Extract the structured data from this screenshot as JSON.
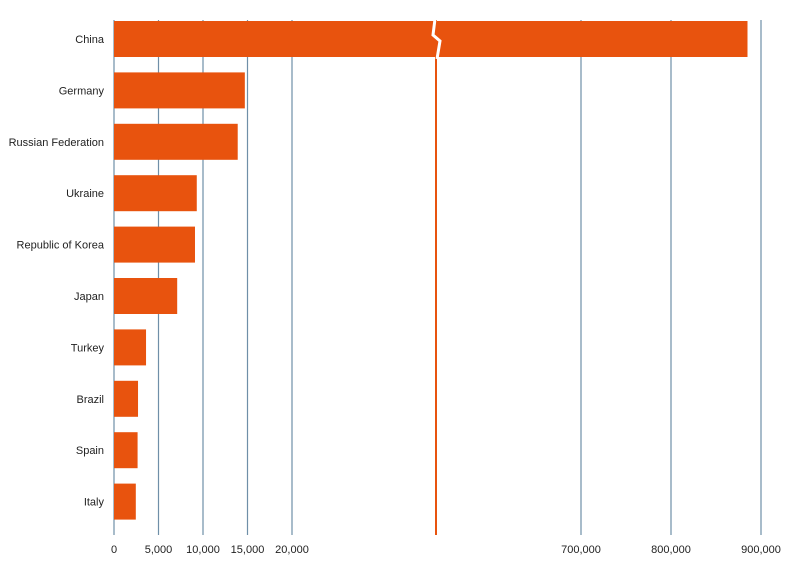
{
  "chart_data": {
    "type": "bar",
    "orientation": "horizontal",
    "categories": [
      "China",
      "Germany",
      "Russian Federation",
      "Ukraine",
      "Republic of Korea",
      "Japan",
      "Turkey",
      "Brazil",
      "Spain",
      "Italy"
    ],
    "values": [
      885000,
      14700,
      13900,
      9300,
      9100,
      7100,
      3600,
      2700,
      2650,
      2450
    ],
    "xlim": [
      0,
      900000
    ],
    "axis_break": [
      20000,
      700000
    ],
    "x_ticks": [
      0,
      5000,
      10000,
      15000,
      20000,
      700000,
      800000,
      900000
    ],
    "x_tick_labels": [
      "0",
      "5,000",
      "10,000",
      "15,000",
      "20,000",
      "700,000",
      "800,000",
      "900,000"
    ],
    "grid": true,
    "colors": {
      "bar": "#e8530e",
      "grid": "#6f8fa8",
      "break_line": "#e8530e"
    }
  }
}
